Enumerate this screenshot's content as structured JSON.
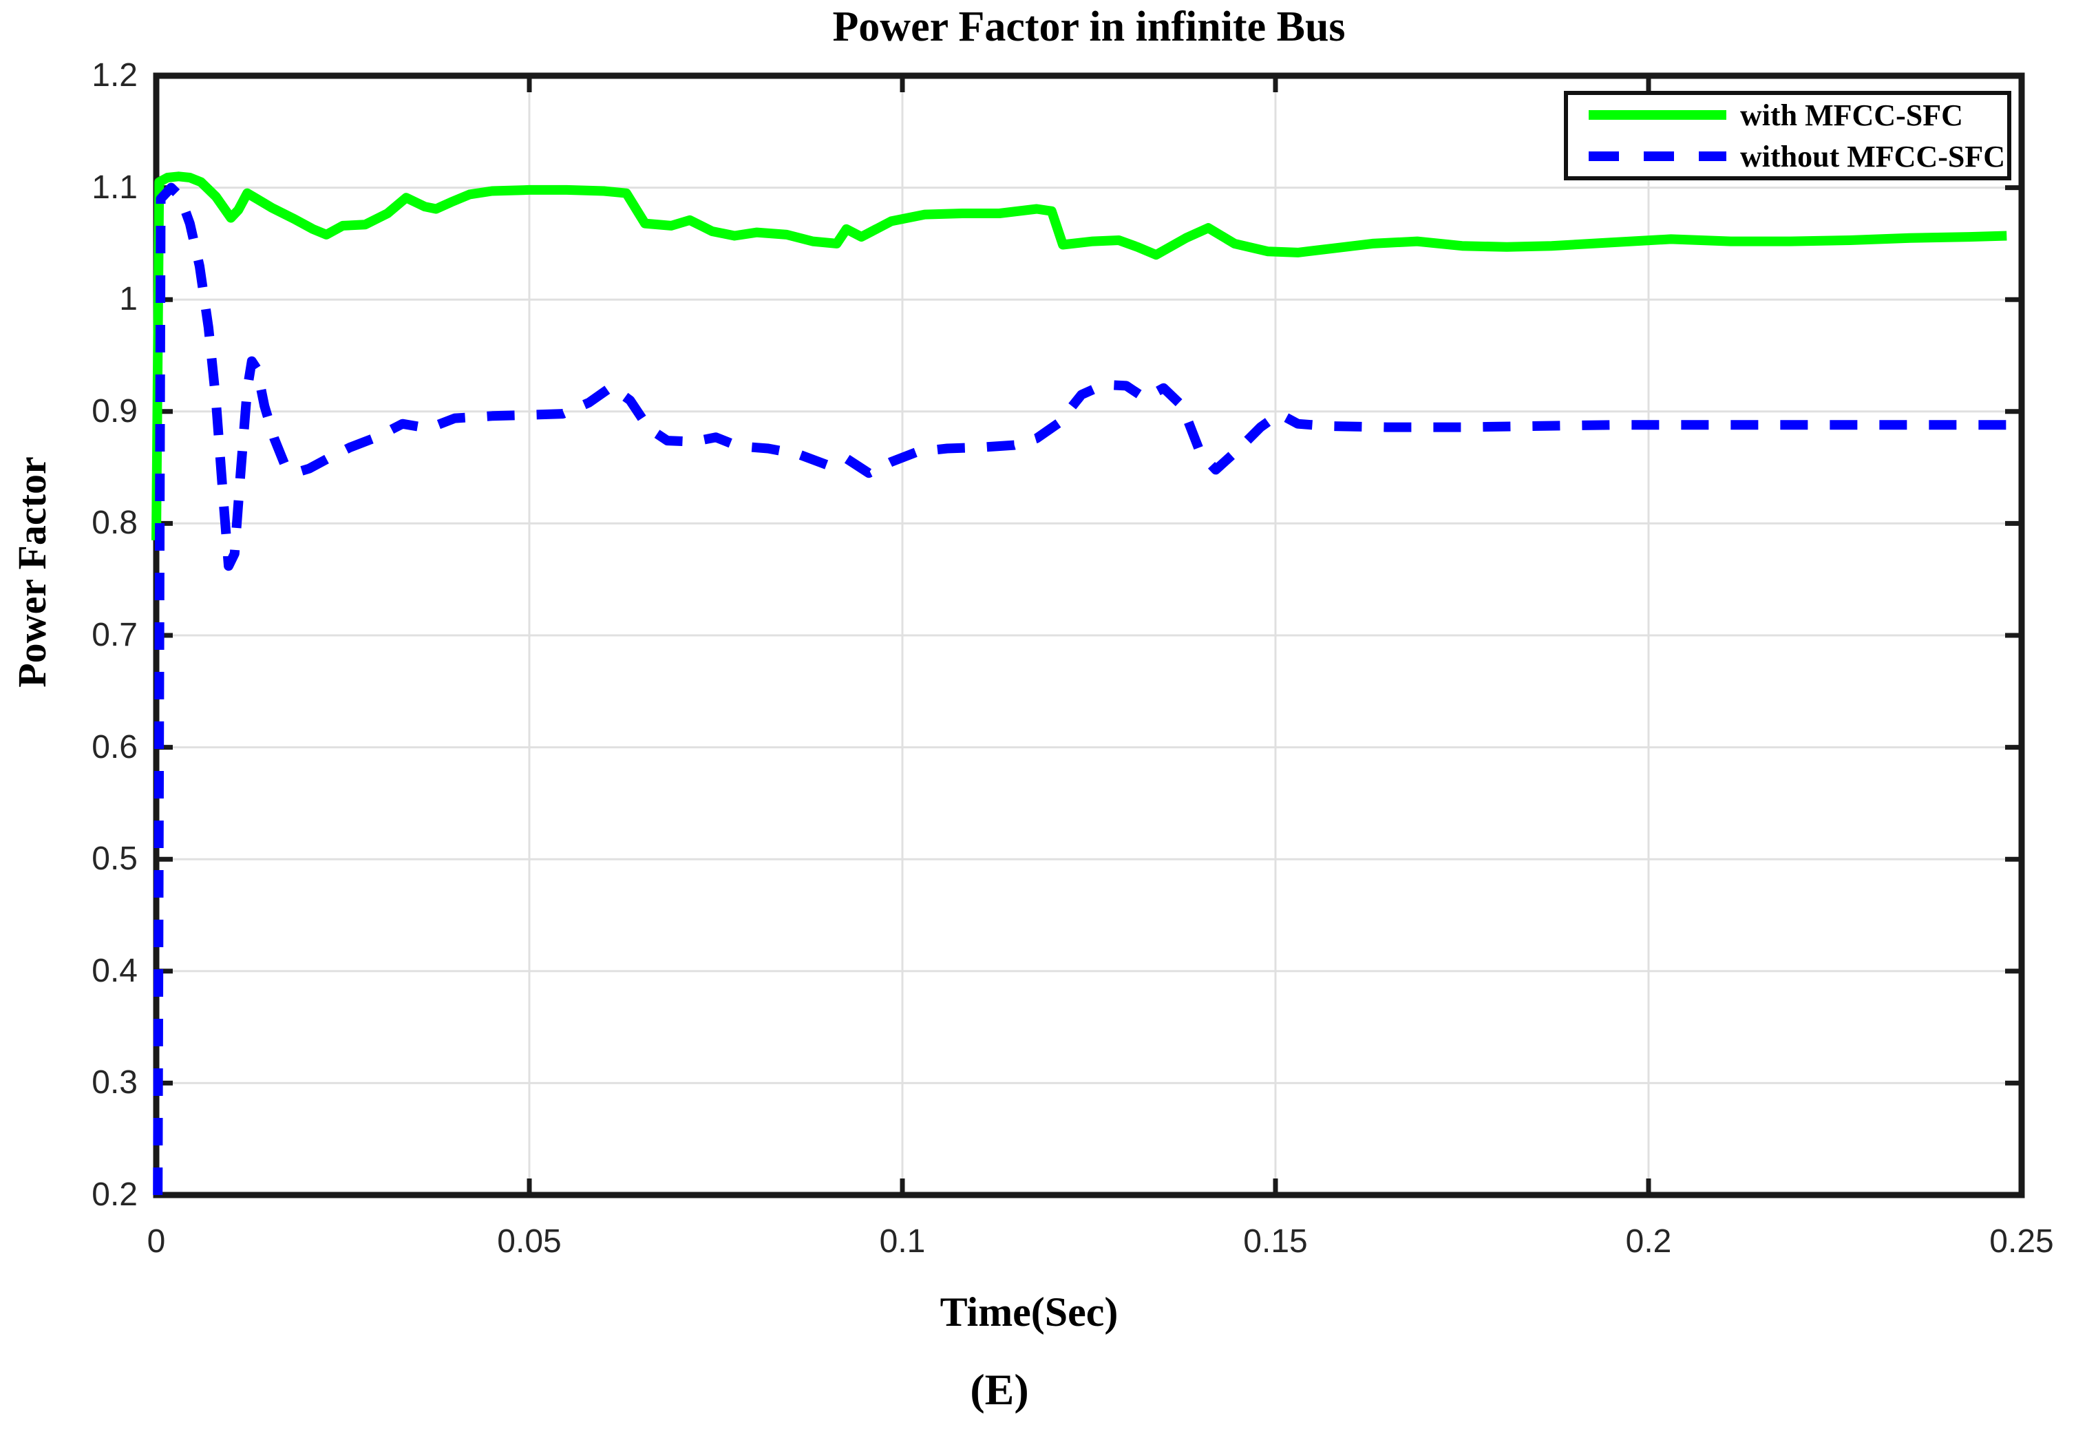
{
  "figure": {
    "title": "Power Factor in infinite Bus",
    "xlabel": "Time(Sec)",
    "ylabel": "Power Factor",
    "caption": "(E)"
  },
  "legend": {
    "position": "top-right",
    "items": [
      {
        "label": "with MFCC-SFC",
        "swatch": "green-solid-line"
      },
      {
        "label": "without MFCC-SFC",
        "swatch": "blue-dashed-line"
      }
    ]
  },
  "colors": {
    "series_with": "#00ff00",
    "series_without": "#0000ff",
    "grid": "#e0e0e0",
    "axis": "#1a1a1a",
    "tick_text": "#262626",
    "text": "#000000",
    "background": "#ffffff"
  },
  "chart_data": {
    "type": "line",
    "title": "Power Factor in infinite Bus",
    "xlabel": "Time(Sec)",
    "ylabel": "Power Factor",
    "xlim": [
      0,
      0.25
    ],
    "ylim": [
      0.2,
      1.2
    ],
    "grid": true,
    "legend_position": "top-right",
    "x_ticks": [
      {
        "value": 0,
        "label": "0"
      },
      {
        "value": 0.05,
        "label": "0.05"
      },
      {
        "value": 0.1,
        "label": "0.1"
      },
      {
        "value": 0.15,
        "label": "0.15"
      },
      {
        "value": 0.2,
        "label": "0.2"
      },
      {
        "value": 0.25,
        "label": "0.25"
      }
    ],
    "y_ticks": [
      {
        "value": 0.2,
        "label": "0.2"
      },
      {
        "value": 0.3,
        "label": "0.3"
      },
      {
        "value": 0.4,
        "label": "0.4"
      },
      {
        "value": 0.5,
        "label": "0.5"
      },
      {
        "value": 0.6,
        "label": "0.6"
      },
      {
        "value": 0.7,
        "label": "0.7"
      },
      {
        "value": 0.8,
        "label": "0.8"
      },
      {
        "value": 0.9,
        "label": "0.9"
      },
      {
        "value": 1,
        "label": "1"
      },
      {
        "value": 1.1,
        "label": "1.1"
      },
      {
        "value": 1.2,
        "label": "1.2"
      }
    ],
    "series": [
      {
        "name": "with MFCC-SFC",
        "color": "#00ff00",
        "style": "solid",
        "points": [
          [
            0.0,
            0.785
          ],
          [
            0.0004,
            1.105
          ],
          [
            0.0015,
            1.109
          ],
          [
            0.003,
            1.11
          ],
          [
            0.0045,
            1.109
          ],
          [
            0.006,
            1.105
          ],
          [
            0.008,
            1.092
          ],
          [
            0.01,
            1.073
          ],
          [
            0.011,
            1.08
          ],
          [
            0.0122,
            1.095
          ],
          [
            0.0135,
            1.09
          ],
          [
            0.0155,
            1.082
          ],
          [
            0.0185,
            1.072
          ],
          [
            0.021,
            1.063
          ],
          [
            0.0228,
            1.058
          ],
          [
            0.025,
            1.066
          ],
          [
            0.028,
            1.067
          ],
          [
            0.031,
            1.077
          ],
          [
            0.0335,
            1.091
          ],
          [
            0.036,
            1.083
          ],
          [
            0.0375,
            1.081
          ],
          [
            0.0395,
            1.087
          ],
          [
            0.042,
            1.094
          ],
          [
            0.045,
            1.097
          ],
          [
            0.05,
            1.098
          ],
          [
            0.055,
            1.098
          ],
          [
            0.06,
            1.097
          ],
          [
            0.063,
            1.095
          ],
          [
            0.0655,
            1.068
          ],
          [
            0.069,
            1.066
          ],
          [
            0.0715,
            1.071
          ],
          [
            0.0745,
            1.061
          ],
          [
            0.0775,
            1.057
          ],
          [
            0.0805,
            1.06
          ],
          [
            0.0845,
            1.058
          ],
          [
            0.088,
            1.052
          ],
          [
            0.0912,
            1.05
          ],
          [
            0.0925,
            1.063
          ],
          [
            0.0945,
            1.056
          ],
          [
            0.0985,
            1.07
          ],
          [
            0.103,
            1.076
          ],
          [
            0.108,
            1.077
          ],
          [
            0.113,
            1.077
          ],
          [
            0.118,
            1.081
          ],
          [
            0.12,
            1.079
          ],
          [
            0.1215,
            1.049
          ],
          [
            0.1255,
            1.052
          ],
          [
            0.129,
            1.053
          ],
          [
            0.1315,
            1.047
          ],
          [
            0.134,
            1.04
          ],
          [
            0.138,
            1.055
          ],
          [
            0.141,
            1.064
          ],
          [
            0.1445,
            1.05
          ],
          [
            0.149,
            1.043
          ],
          [
            0.153,
            1.042
          ],
          [
            0.158,
            1.046
          ],
          [
            0.163,
            1.05
          ],
          [
            0.169,
            1.052
          ],
          [
            0.175,
            1.048
          ],
          [
            0.181,
            1.047
          ],
          [
            0.187,
            1.048
          ],
          [
            0.195,
            1.051
          ],
          [
            0.203,
            1.054
          ],
          [
            0.211,
            1.052
          ],
          [
            0.219,
            1.052
          ],
          [
            0.227,
            1.053
          ],
          [
            0.235,
            1.055
          ],
          [
            0.243,
            1.056
          ],
          [
            0.248,
            1.057
          ]
        ]
      },
      {
        "name": "without MFCC-SFC",
        "color": "#0000ff",
        "style": "dashed",
        "points": [
          [
            0.0002,
            0.2
          ],
          [
            0.0006,
            1.09
          ],
          [
            0.002,
            1.1
          ],
          [
            0.0032,
            1.092
          ],
          [
            0.0045,
            1.068
          ],
          [
            0.0058,
            1.03
          ],
          [
            0.007,
            0.975
          ],
          [
            0.008,
            0.91
          ],
          [
            0.009,
            0.82
          ],
          [
            0.0097,
            0.762
          ],
          [
            0.0105,
            0.773
          ],
          [
            0.0113,
            0.845
          ],
          [
            0.0122,
            0.92
          ],
          [
            0.0128,
            0.945
          ],
          [
            0.0135,
            0.938
          ],
          [
            0.0145,
            0.905
          ],
          [
            0.0158,
            0.876
          ],
          [
            0.0172,
            0.853
          ],
          [
            0.0185,
            0.845
          ],
          [
            0.0205,
            0.849
          ],
          [
            0.023,
            0.858
          ],
          [
            0.026,
            0.868
          ],
          [
            0.0295,
            0.877
          ],
          [
            0.033,
            0.889
          ],
          [
            0.0365,
            0.885
          ],
          [
            0.04,
            0.894
          ],
          [
            0.045,
            0.896
          ],
          [
            0.05,
            0.897
          ],
          [
            0.0545,
            0.898
          ],
          [
            0.058,
            0.908
          ],
          [
            0.061,
            0.922
          ],
          [
            0.0635,
            0.91
          ],
          [
            0.066,
            0.885
          ],
          [
            0.0685,
            0.874
          ],
          [
            0.072,
            0.873
          ],
          [
            0.075,
            0.877
          ],
          [
            0.078,
            0.869
          ],
          [
            0.082,
            0.867
          ],
          [
            0.086,
            0.862
          ],
          [
            0.09,
            0.852
          ],
          [
            0.0925,
            0.858
          ],
          [
            0.0955,
            0.845
          ],
          [
            0.0985,
            0.855
          ],
          [
            0.102,
            0.864
          ],
          [
            0.106,
            0.867
          ],
          [
            0.1105,
            0.868
          ],
          [
            0.115,
            0.87
          ],
          [
            0.118,
            0.876
          ],
          [
            0.121,
            0.89
          ],
          [
            0.124,
            0.915
          ],
          [
            0.127,
            0.924
          ],
          [
            0.13,
            0.923
          ],
          [
            0.1325,
            0.912
          ],
          [
            0.135,
            0.921
          ],
          [
            0.1375,
            0.905
          ],
          [
            0.14,
            0.862
          ],
          [
            0.142,
            0.848
          ],
          [
            0.145,
            0.866
          ],
          [
            0.148,
            0.886
          ],
          [
            0.1505,
            0.898
          ],
          [
            0.153,
            0.889
          ],
          [
            0.157,
            0.887
          ],
          [
            0.165,
            0.886
          ],
          [
            0.175,
            0.886
          ],
          [
            0.185,
            0.887
          ],
          [
            0.195,
            0.888
          ],
          [
            0.205,
            0.888
          ],
          [
            0.215,
            0.888
          ],
          [
            0.225,
            0.888
          ],
          [
            0.235,
            0.888
          ],
          [
            0.245,
            0.888
          ],
          [
            0.248,
            0.888
          ]
        ]
      }
    ]
  }
}
